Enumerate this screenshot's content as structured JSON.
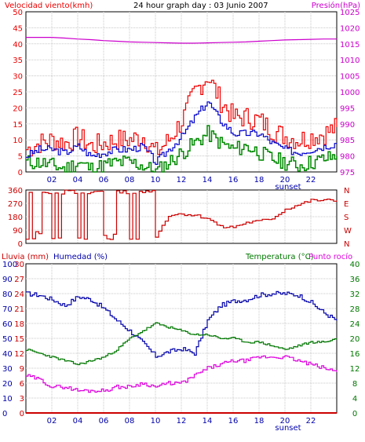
{
  "header": {
    "wind_label": "Velocidad viento(kmh)",
    "graph_title": "24 hour graph day : 03 Junio 2007",
    "pressure_label": "Presión(hPa)",
    "rain_label": "Lluvia (mm)",
    "humidity_label": "Humedad (%)",
    "temp_label": "Temperatura (°C)",
    "dew_label": "Punto rocío",
    "sunset_label": "sunset"
  },
  "colors": {
    "wind_gust": "#ee0000",
    "wind_avg": "#0000cc",
    "wind_min": "#008800",
    "pressure": "#cc00cc",
    "direction": "#cc0000",
    "humidity": "#0000aa",
    "temperature": "#007700",
    "dewpoint": "#dd00dd",
    "rain": "#cc0000"
  },
  "chart_data": [
    {
      "type": "line",
      "title": "24 hour graph day : 03 Junio 2007",
      "x_ticks": [
        "02",
        "04",
        "06",
        "08",
        "10",
        "12",
        "14",
        "16",
        "18",
        "20",
        "22"
      ],
      "y_left_label": "Velocidad viento(kmh)",
      "y_left_ticks": [
        0,
        5,
        10,
        15,
        20,
        25,
        30,
        35,
        40,
        45,
        50
      ],
      "y_left_range": [
        0,
        50
      ],
      "y_right_label": "Presión(hPa)",
      "y_right_ticks": [
        975,
        980,
        985,
        990,
        995,
        1000,
        1005,
        1010,
        1015,
        1020,
        1025
      ],
      "y_right_range": [
        975,
        1025
      ],
      "x": [
        0,
        1,
        2,
        3,
        4,
        5,
        6,
        7,
        8,
        9,
        10,
        11,
        12,
        13,
        14,
        15,
        16,
        17,
        18,
        19,
        20,
        21,
        22,
        23,
        24
      ],
      "series": [
        {
          "name": "gust",
          "axis": "left",
          "values": [
            7,
            9,
            10,
            9,
            11,
            8,
            9,
            10,
            10,
            11,
            6,
            10,
            16,
            25,
            30,
            22,
            17,
            17,
            16,
            13,
            11,
            10,
            11,
            12,
            14
          ]
        },
        {
          "name": "avg",
          "axis": "left",
          "values": [
            5,
            7,
            7,
            6,
            8,
            5,
            6,
            7,
            7,
            8,
            3,
            7,
            11,
            17,
            22,
            16,
            12,
            12,
            12,
            9,
            7,
            6,
            7,
            8,
            9
          ]
        },
        {
          "name": "min",
          "axis": "left",
          "values": [
            3,
            3,
            2,
            1,
            3,
            1,
            2,
            3,
            3,
            2,
            0,
            3,
            6,
            9,
            12,
            9,
            7,
            8,
            6,
            4,
            3,
            2,
            3,
            4,
            5
          ]
        },
        {
          "name": "pressure",
          "axis": "right",
          "values": [
            1017,
            1017,
            1017,
            1016.8,
            1016.5,
            1016.3,
            1016,
            1015.8,
            1015.6,
            1015.5,
            1015.4,
            1015.3,
            1015.2,
            1015.2,
            1015.3,
            1015.4,
            1015.5,
            1015.6,
            1015.8,
            1016,
            1016.2,
            1016.3,
            1016.4,
            1016.5,
            1016.5
          ]
        }
      ],
      "annotation": "sunset",
      "annotation_x": 20.4
    },
    {
      "type": "line",
      "x_ticks": [],
      "y_left_ticks": [
        0,
        90,
        180,
        270,
        360
      ],
      "y_left_range": [
        0,
        360
      ],
      "y_right_ticks": [
        "N",
        "W",
        "S",
        "E",
        "N"
      ],
      "x": [
        0,
        1,
        2,
        3,
        4,
        5,
        6,
        7,
        8,
        9,
        10,
        11,
        12,
        13,
        14,
        15,
        16,
        17,
        18,
        19,
        20,
        21,
        22,
        23,
        24
      ],
      "series": [
        {
          "name": "direction",
          "values": [
            20,
            340,
            20,
            340,
            20,
            340,
            20,
            340,
            20,
            340,
            50,
            190,
            200,
            190,
            170,
            110,
            110,
            140,
            150,
            170,
            230,
            260,
            290,
            290,
            290
          ]
        }
      ]
    },
    {
      "type": "line",
      "x_ticks": [
        "02",
        "04",
        "06",
        "08",
        "10",
        "12",
        "14",
        "16",
        "18",
        "20",
        "22"
      ],
      "y_left_label": "Lluvia (mm)",
      "y_left_ticks": [
        0,
        3,
        6,
        9,
        12,
        15,
        18,
        21,
        24,
        27,
        30
      ],
      "y_left_range": [
        0,
        30
      ],
      "y_left2_label": "Humedad (%)",
      "y_left2_ticks": [
        0,
        10,
        20,
        30,
        40,
        50,
        60,
        70,
        80,
        90,
        100
      ],
      "y_left2_range": [
        0,
        100
      ],
      "y_right_label": "Temperatura (°C)Punto rocío",
      "y_right_ticks": [
        0,
        4,
        8,
        12,
        16,
        20,
        24,
        28,
        32,
        36,
        40
      ],
      "y_right_range": [
        0,
        40
      ],
      "x": [
        0,
        1,
        2,
        3,
        4,
        5,
        6,
        7,
        8,
        9,
        10,
        11,
        12,
        13,
        14,
        15,
        16,
        17,
        18,
        19,
        20,
        21,
        22,
        23,
        24
      ],
      "series": [
        {
          "name": "rain",
          "axis": "left",
          "values": [
            0,
            0,
            0,
            0,
            0,
            0,
            0,
            0,
            0,
            0,
            0,
            0,
            0,
            0,
            0,
            0,
            0,
            0,
            0,
            0,
            0,
            0,
            0,
            0,
            0
          ]
        },
        {
          "name": "humidity",
          "axis": "left2",
          "values": [
            80,
            79,
            76,
            72,
            78,
            76,
            70,
            62,
            55,
            47,
            38,
            41,
            43,
            40,
            62,
            72,
            75,
            76,
            79,
            80,
            80,
            79,
            74,
            67,
            62
          ]
        },
        {
          "name": "temperature",
          "axis": "right",
          "values": [
            17,
            16,
            15,
            14,
            13,
            14,
            15,
            17,
            20,
            22,
            24,
            23,
            22,
            21,
            21,
            20,
            20,
            19,
            19,
            18,
            17,
            18,
            19,
            19,
            20
          ]
        },
        {
          "name": "dewpoint",
          "axis": "right",
          "values": [
            10,
            9,
            7,
            7,
            6,
            6,
            6,
            7,
            7,
            8,
            7,
            8,
            8,
            10,
            12,
            13,
            14,
            14,
            15,
            15,
            15,
            14,
            13,
            12,
            11
          ]
        }
      ],
      "annotation": "sunset",
      "annotation_x": 20.4
    }
  ]
}
